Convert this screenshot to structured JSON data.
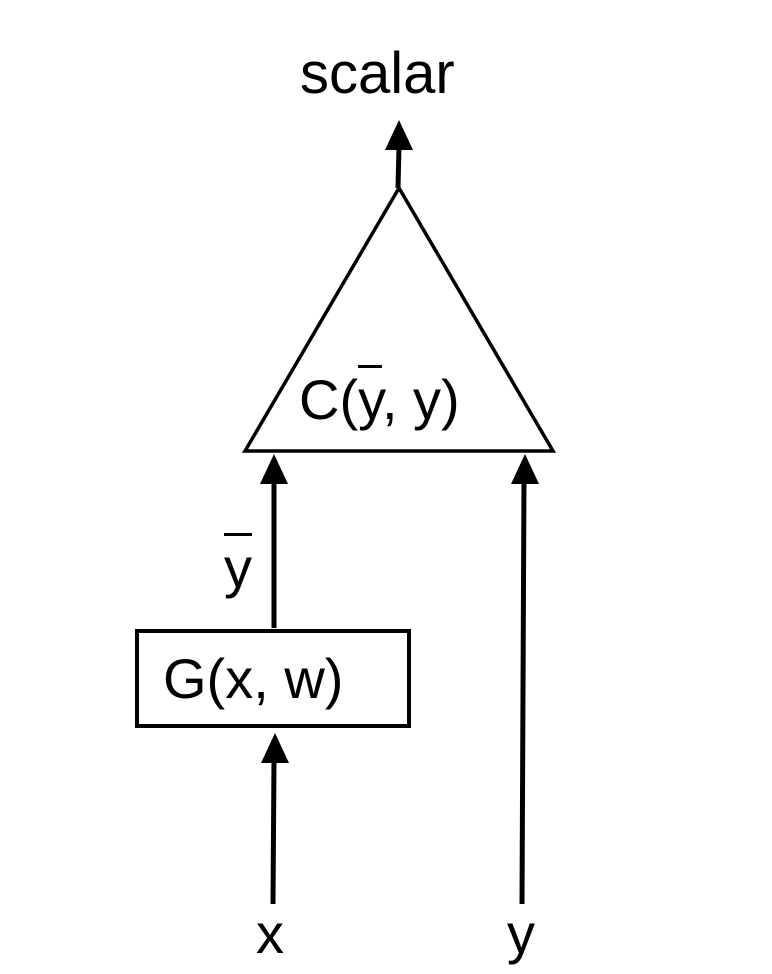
{
  "diagram": {
    "output_label": "scalar",
    "cost_function": {
      "prefix": "C(",
      "arg1": "y",
      "suffix": ", y)"
    },
    "generator": {
      "label": "G(x, w)"
    },
    "prediction_label": "y",
    "input_x_label": "x",
    "input_y_label": "y"
  },
  "colors": {
    "stroke": "#000000",
    "background": "#ffffff"
  }
}
